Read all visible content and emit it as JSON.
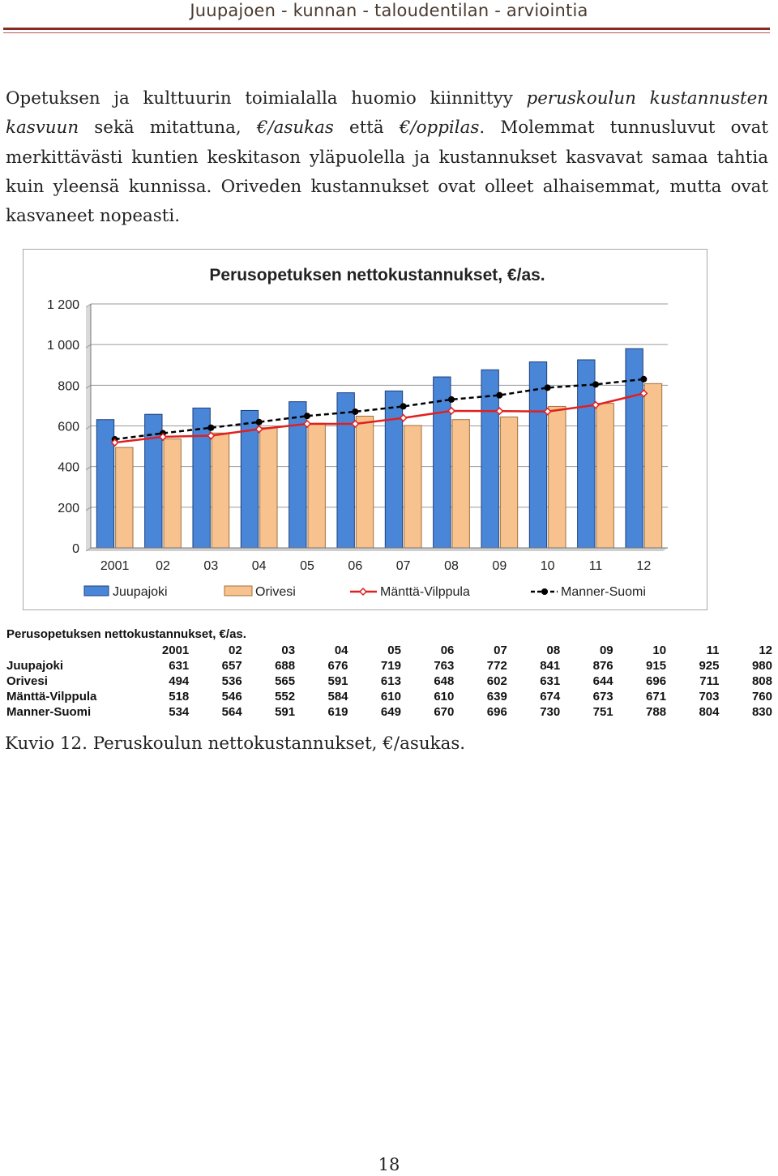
{
  "header": {
    "running_title": "Juupajoen - kunnan - taloudentilan - arviointia"
  },
  "paragraph": {
    "l1_a": "Opetuksen ja kulttuurin toimialalla huomio kiinnittyy ",
    "l1_b": "peruskoulun kustannusten",
    "l2_a": "kasvuun",
    "l2_b": " sekä mitattuna, ",
    "l2_c": "€/asukas",
    "l2_d": " että ",
    "l2_e": "€/oppilas",
    "l2_f": ". Molemmat tunnusluvut ovat",
    "l3": "merkittävästi kuntien keskitason yläpuolella ja kustannukset kasvavat samaa tahtia",
    "l4": "kuin yleensä kunnissa. Oriveden kustannukset ovat olleet alhaisemmat, mutta ovat",
    "l5": "kasvaneet nopeasti."
  },
  "chart_data": {
    "type": "bar",
    "title": "Perusopetuksen nettokustannukset, €/as.",
    "categories": [
      "2001",
      "02",
      "03",
      "04",
      "05",
      "06",
      "07",
      "08",
      "09",
      "10",
      "11",
      "12"
    ],
    "ylim": [
      0,
      1200
    ],
    "yticks": [
      "0",
      "200",
      "400",
      "600",
      "800",
      "1 000",
      "1 200"
    ],
    "grid": true,
    "legend_position": "bottom",
    "series": [
      {
        "name": "Juupajoki",
        "kind": "bar",
        "color": "#4a86d8",
        "values": [
          631,
          657,
          688,
          676,
          719,
          763,
          772,
          841,
          876,
          915,
          925,
          980
        ]
      },
      {
        "name": "Orivesi",
        "kind": "bar",
        "color": "#f8c28e",
        "values": [
          494,
          536,
          565,
          591,
          613,
          648,
          602,
          631,
          644,
          696,
          711,
          808
        ]
      },
      {
        "name": "Mänttä-Vilppula",
        "kind": "line",
        "color": "#e02020",
        "values": [
          518,
          546,
          552,
          584,
          610,
          610,
          639,
          674,
          673,
          671,
          703,
          760
        ]
      },
      {
        "name": "Manner-Suomi",
        "kind": "dashed-line",
        "color": "#000000",
        "values": [
          534,
          564,
          591,
          619,
          649,
          670,
          696,
          730,
          751,
          788,
          804,
          830
        ]
      }
    ]
  },
  "table": {
    "caption": "Perusopetuksen nettokustannukset, €/as.",
    "headers": [
      "2001",
      "02",
      "03",
      "04",
      "05",
      "06",
      "07",
      "08",
      "09",
      "10",
      "11",
      "12"
    ],
    "rows": [
      {
        "label": "Juupajoki",
        "values": [
          "631",
          "657",
          "688",
          "676",
          "719",
          "763",
          "772",
          "841",
          "876",
          "915",
          "925",
          "980"
        ]
      },
      {
        "label": "Orivesi",
        "values": [
          "494",
          "536",
          "565",
          "591",
          "613",
          "648",
          "602",
          "631",
          "644",
          "696",
          "711",
          "808"
        ]
      },
      {
        "label": "Mänttä-Vilppula",
        "values": [
          "518",
          "546",
          "552",
          "584",
          "610",
          "610",
          "639",
          "674",
          "673",
          "671",
          "703",
          "760"
        ]
      },
      {
        "label": "Manner-Suomi",
        "values": [
          "534",
          "564",
          "591",
          "619",
          "649",
          "670",
          "696",
          "730",
          "751",
          "788",
          "804",
          "830"
        ]
      }
    ]
  },
  "figure_caption": "Kuvio 12. Peruskoulun nettokustannukset, €/asukas.",
  "page_number": "18"
}
